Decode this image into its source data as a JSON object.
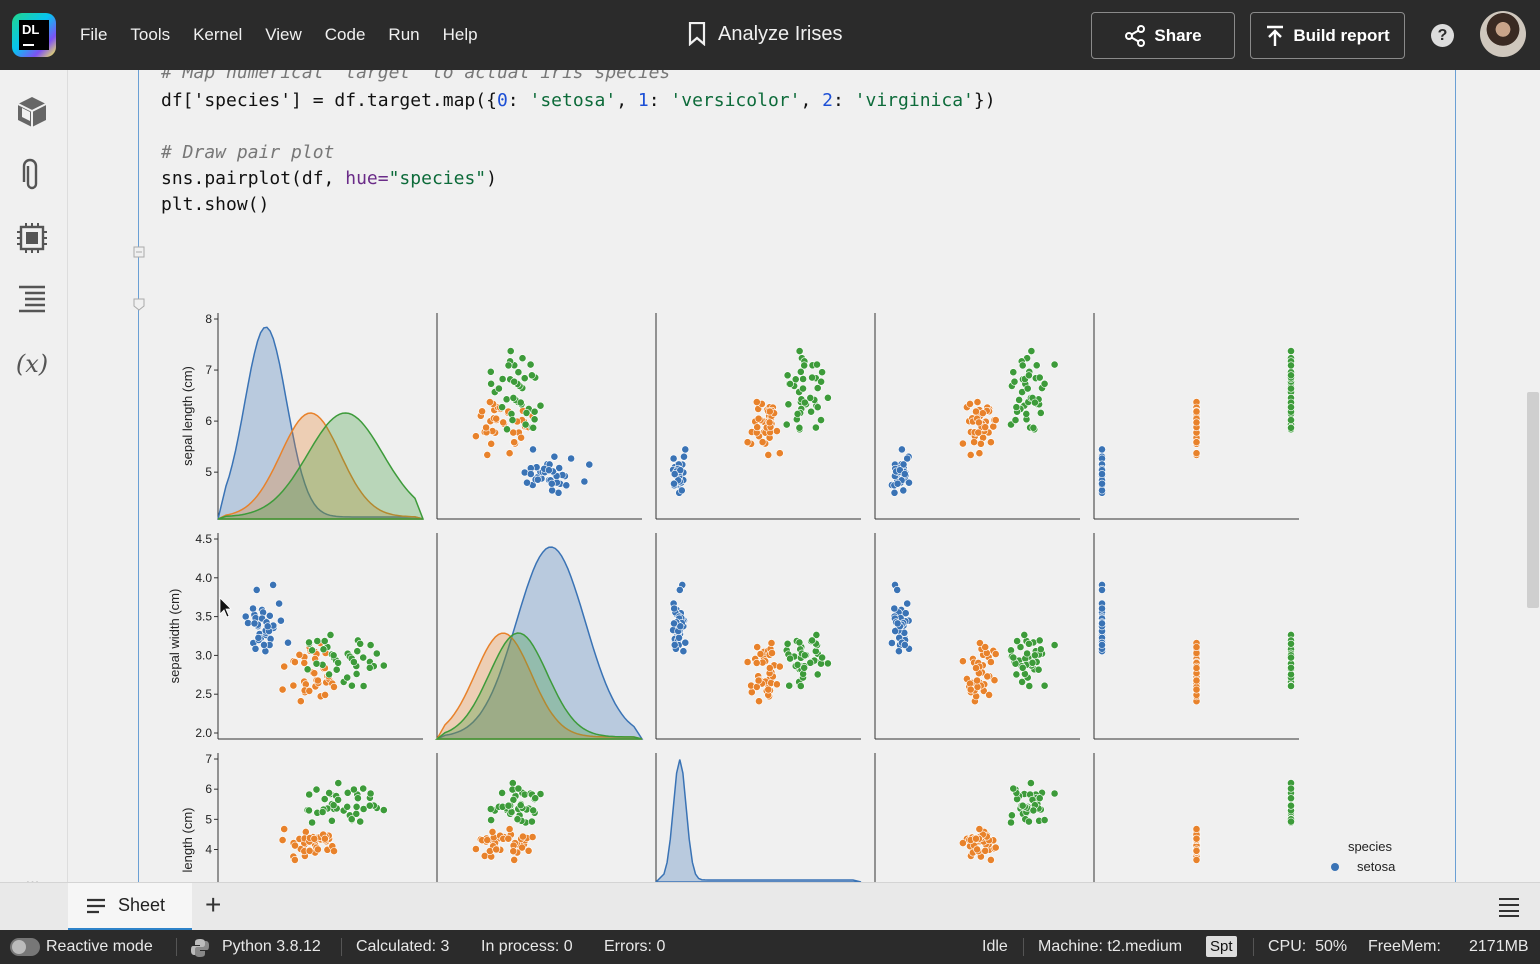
{
  "app": {
    "logo_text": "DL",
    "menu": [
      "File",
      "Tools",
      "Kernel",
      "View",
      "Code",
      "Run",
      "Help"
    ],
    "notebook_title": "Analyze Irises",
    "share_label": "Share",
    "build_report_label": "Build report",
    "help_label": "?"
  },
  "sidebar": {
    "icons": [
      "package-icon",
      "attachment-icon",
      "processor-icon",
      "outline-icon",
      "variables-icon"
    ],
    "variables_label": "(x)",
    "more_label": "•••"
  },
  "code": {
    "line0": "# Map numerical 'target' to actual iris species",
    "line1_prefix": "df['species'] = df.target.map({",
    "line1_items": [
      {
        "key": "0",
        "value": "'setosa'"
      },
      {
        "key": "1",
        "value": "'versicolor'"
      },
      {
        "key": "2",
        "value": "'virginica'"
      }
    ],
    "line2": "# Draw pair plot",
    "line3_prefix": "sns.pairplot(df, ",
    "line3_kw": "hue=",
    "line3_str": "\"species\"",
    "line3_suffix": ")",
    "line4": "plt.show()"
  },
  "chart_data": {
    "type": "scatter",
    "variant": "pairplot",
    "hue": "species",
    "row_labels": [
      "sepal length (cm)",
      "sepal width (cm)",
      "length (cm)"
    ],
    "yticks": [
      [
        "8",
        "7",
        "6",
        "5"
      ],
      [
        "4.5",
        "4.0",
        "3.5",
        "3.0",
        "2.5",
        "2.0"
      ],
      [
        "7",
        "6",
        "5",
        "4"
      ]
    ],
    "legend_title": "species",
    "legend_entries": [
      "setosa"
    ],
    "colors": {
      "setosa": "#3a73b5",
      "versicolor": "#e8822b",
      "virginica": "#3d9b3a"
    }
  },
  "tabs": {
    "sheet_label": "Sheet",
    "add_label": "+"
  },
  "status": {
    "reactive_mode": "Reactive mode",
    "python": "Python 3.8.12",
    "calculated": "Calculated: 3",
    "in_process": "In process: 0",
    "errors": "Errors: 0",
    "kernel_state": "Idle",
    "machine": "Machine: t2.medium",
    "spot_badge": "Spt",
    "cpu": "CPU:  50%",
    "freemem_label": "FreeMem:",
    "freemem_value": "2171MB"
  }
}
